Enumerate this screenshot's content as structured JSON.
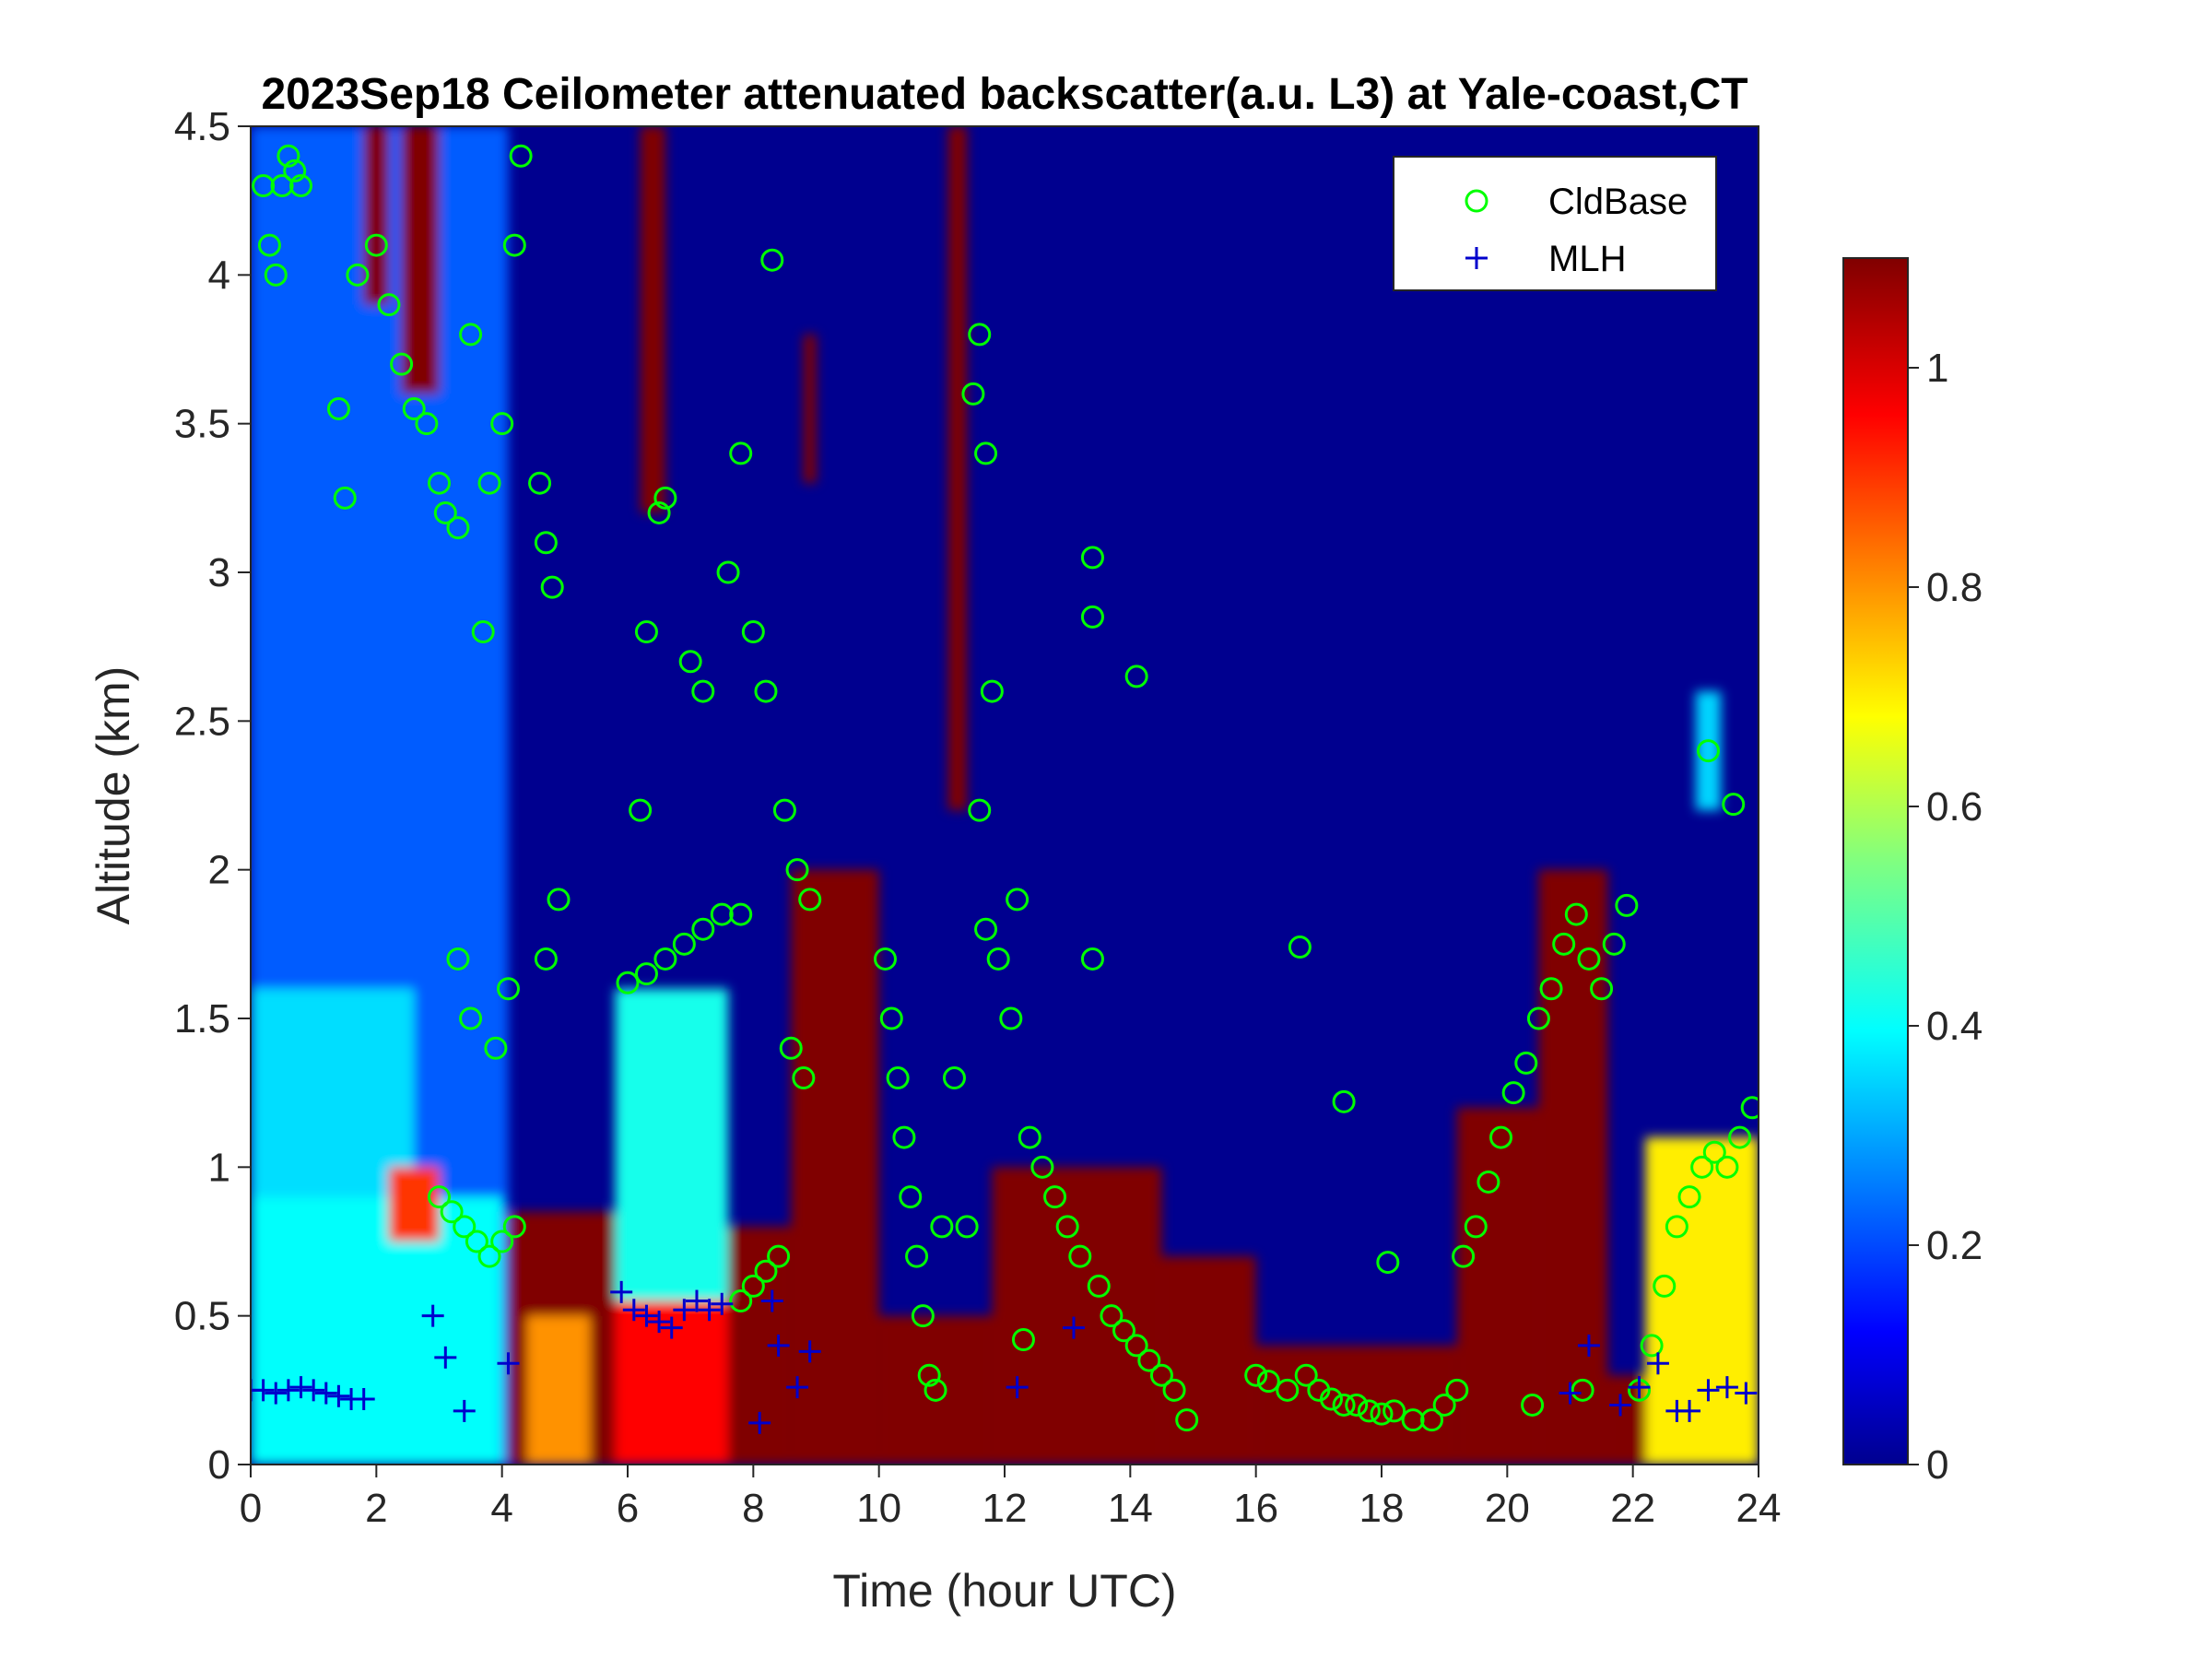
{
  "chart_data": {
    "type": "heatmap",
    "title": "2023Sep18 Ceilometer attenuated backscatter(a.u. L3) at Yale-coast,CT",
    "xlabel": "Time (hour UTC)",
    "ylabel": "Altitude (km)",
    "xlim": [
      0,
      24
    ],
    "ylim": [
      0,
      4.5
    ],
    "x_ticks": [
      "0",
      "2",
      "4",
      "6",
      "8",
      "10",
      "12",
      "14",
      "16",
      "18",
      "20",
      "22",
      "24"
    ],
    "y_ticks": [
      "0",
      "0.5",
      "1",
      "1.5",
      "2",
      "2.5",
      "3",
      "3.5",
      "4",
      "4.5"
    ],
    "colorbar": {
      "colormap": "jet",
      "range": [
        0,
        1.1
      ],
      "ticks": [
        "0",
        "0.2",
        "0.4",
        "0.6",
        "0.8",
        "1"
      ]
    },
    "legend": {
      "placement": "top-right",
      "entries": [
        {
          "name": "CldBase",
          "marker": "circle",
          "color": "#00ff00"
        },
        {
          "name": "MLH",
          "marker": "plus",
          "color": "#0000cc"
        }
      ]
    },
    "field_regions": [
      {
        "t0": 0,
        "t1": 4.1,
        "z0": 0,
        "z1": 4.5,
        "value": 0.22
      },
      {
        "t0": 0,
        "t1": 2.6,
        "z0": 0,
        "z1": 1.6,
        "value": 0.36
      },
      {
        "t0": 0,
        "t1": 4.0,
        "z0": 0,
        "z1": 0.9,
        "value": 0.4
      },
      {
        "t0": 2.2,
        "t1": 3.0,
        "z0": 0.75,
        "z1": 1.0,
        "value": 0.9
      },
      {
        "t0": 4.1,
        "t1": 5.8,
        "z0": 0,
        "z1": 0.85,
        "value": 1.1
      },
      {
        "t0": 4.4,
        "t1": 5.4,
        "z0": 0,
        "z1": 0.5,
        "value": 0.8
      },
      {
        "t0": 5.8,
        "t1": 7.6,
        "z0": 0.55,
        "z1": 1.6,
        "value": 0.42
      },
      {
        "t0": 5.8,
        "t1": 7.6,
        "z0": 0,
        "z1": 0.55,
        "value": 0.95
      },
      {
        "t0": 7.6,
        "t1": 8.6,
        "z0": 0,
        "z1": 0.8,
        "value": 1.1
      },
      {
        "t0": 8.6,
        "t1": 10.0,
        "z0": 0,
        "z1": 2.0,
        "value": 1.1
      },
      {
        "t0": 10.0,
        "t1": 11.8,
        "z0": 0,
        "z1": 0.5,
        "value": 1.1
      },
      {
        "t0": 11.8,
        "t1": 14.5,
        "z0": 0,
        "z1": 1.0,
        "value": 1.1
      },
      {
        "t0": 14.5,
        "t1": 16.0,
        "z0": 0,
        "z1": 0.7,
        "value": 1.1
      },
      {
        "t0": 16.0,
        "t1": 19.2,
        "z0": 0,
        "z1": 0.4,
        "value": 1.1
      },
      {
        "t0": 19.2,
        "t1": 20.5,
        "z0": 0,
        "z1": 1.2,
        "value": 1.1
      },
      {
        "t0": 20.5,
        "t1": 21.6,
        "z0": 0,
        "z1": 2.0,
        "value": 1.1
      },
      {
        "t0": 21.6,
        "t1": 22.2,
        "z0": 0,
        "z1": 0.3,
        "value": 1.1
      },
      {
        "t0": 22.2,
        "t1": 24.0,
        "z0": 0,
        "z1": 1.1,
        "value": 0.7
      },
      {
        "t0": 6.2,
        "t1": 6.6,
        "z0": 3.2,
        "z1": 4.5,
        "value": 1.1
      },
      {
        "t0": 8.8,
        "t1": 9.0,
        "z0": 3.3,
        "z1": 3.8,
        "value": 1.1
      },
      {
        "t0": 11.1,
        "t1": 11.4,
        "z0": 2.2,
        "z1": 4.5,
        "value": 1.1
      },
      {
        "t0": 2.4,
        "t1": 3.0,
        "z0": 3.6,
        "z1": 4.5,
        "value": 1.1
      },
      {
        "t0": 1.8,
        "t1": 2.2,
        "z0": 3.9,
        "z1": 4.5,
        "value": 1.1
      },
      {
        "t0": 23.0,
        "t1": 23.4,
        "z0": 2.2,
        "z1": 2.6,
        "value": 0.35
      }
    ],
    "cloud_base_km": [
      [
        0.2,
        4.3
      ],
      [
        0.3,
        4.1
      ],
      [
        0.4,
        4.0
      ],
      [
        0.5,
        4.3
      ],
      [
        0.6,
        4.4
      ],
      [
        0.7,
        4.35
      ],
      [
        0.8,
        4.3
      ],
      [
        1.4,
        3.55
      ],
      [
        1.5,
        3.25
      ],
      [
        1.7,
        4.0
      ],
      [
        2.0,
        4.1
      ],
      [
        2.2,
        3.9
      ],
      [
        2.4,
        3.7
      ],
      [
        2.6,
        3.55
      ],
      [
        2.8,
        3.5
      ],
      [
        3.0,
        3.3
      ],
      [
        3.1,
        3.2
      ],
      [
        3.3,
        3.15
      ],
      [
        3.5,
        3.8
      ],
      [
        3.7,
        2.8
      ],
      [
        3.8,
        3.3
      ],
      [
        4.0,
        3.5
      ],
      [
        4.2,
        4.1
      ],
      [
        4.3,
        4.4
      ],
      [
        4.6,
        3.3
      ],
      [
        4.7,
        3.1
      ],
      [
        4.8,
        2.95
      ],
      [
        3.0,
        0.9
      ],
      [
        3.2,
        0.85
      ],
      [
        3.4,
        0.8
      ],
      [
        3.6,
        0.75
      ],
      [
        3.8,
        0.7
      ],
      [
        4.0,
        0.75
      ],
      [
        4.2,
        0.8
      ],
      [
        3.3,
        1.7
      ],
      [
        3.5,
        1.5
      ],
      [
        3.9,
        1.4
      ],
      [
        4.1,
        1.6
      ],
      [
        4.7,
        1.7
      ],
      [
        4.9,
        1.9
      ],
      [
        6.0,
        1.62
      ],
      [
        6.3,
        1.65
      ],
      [
        6.6,
        1.7
      ],
      [
        6.9,
        1.75
      ],
      [
        7.2,
        1.8
      ],
      [
        7.5,
        1.85
      ],
      [
        7.8,
        1.85
      ],
      [
        6.5,
        3.2
      ],
      [
        6.6,
        3.25
      ],
      [
        6.3,
        2.8
      ],
      [
        6.2,
        2.2
      ],
      [
        7.0,
        2.7
      ],
      [
        7.2,
        2.6
      ],
      [
        7.6,
        3.0
      ],
      [
        7.8,
        3.4
      ],
      [
        8.0,
        2.8
      ],
      [
        8.2,
        2.6
      ],
      [
        8.5,
        2.2
      ],
      [
        8.7,
        2.0
      ],
      [
        8.9,
        1.9
      ],
      [
        8.3,
        4.05
      ],
      [
        7.8,
        0.55
      ],
      [
        8.0,
        0.6
      ],
      [
        8.2,
        0.65
      ],
      [
        8.4,
        0.7
      ],
      [
        8.6,
        1.4
      ],
      [
        8.8,
        1.3
      ],
      [
        10.1,
        1.7
      ],
      [
        10.2,
        1.5
      ],
      [
        10.3,
        1.3
      ],
      [
        10.4,
        1.1
      ],
      [
        10.5,
        0.9
      ],
      [
        10.6,
        0.7
      ],
      [
        10.7,
        0.5
      ],
      [
        10.8,
        0.3
      ],
      [
        10.9,
        0.25
      ],
      [
        11.0,
        0.8
      ],
      [
        11.2,
        1.3
      ],
      [
        11.4,
        0.8
      ],
      [
        11.5,
        3.6
      ],
      [
        11.6,
        3.8
      ],
      [
        11.7,
        3.4
      ],
      [
        11.8,
        2.6
      ],
      [
        11.6,
        2.2
      ],
      [
        11.7,
        1.8
      ],
      [
        11.9,
        1.7
      ],
      [
        12.1,
        1.5
      ],
      [
        12.2,
        1.9
      ],
      [
        12.4,
        1.1
      ],
      [
        12.6,
        1.0
      ],
      [
        12.8,
        0.9
      ],
      [
        13.0,
        0.8
      ],
      [
        13.2,
        0.7
      ],
      [
        13.4,
        1.7
      ],
      [
        13.5,
        0.6
      ],
      [
        13.7,
        0.5
      ],
      [
        13.9,
        0.45
      ],
      [
        14.1,
        0.4
      ],
      [
        14.3,
        0.35
      ],
      [
        14.5,
        0.3
      ],
      [
        14.7,
        0.25
      ],
      [
        14.9,
        0.15
      ],
      [
        13.4,
        3.05
      ],
      [
        13.4,
        2.85
      ],
      [
        14.1,
        2.65
      ],
      [
        12.3,
        0.42
      ],
      [
        16.0,
        0.3
      ],
      [
        16.2,
        0.28
      ],
      [
        16.5,
        0.25
      ],
      [
        16.8,
        0.3
      ],
      [
        17.0,
        0.25
      ],
      [
        17.2,
        0.22
      ],
      [
        17.4,
        0.2
      ],
      [
        17.6,
        0.2
      ],
      [
        17.8,
        0.18
      ],
      [
        18.0,
        0.17
      ],
      [
        18.2,
        0.18
      ],
      [
        18.5,
        0.15
      ],
      [
        18.8,
        0.15
      ],
      [
        19.0,
        0.2
      ],
      [
        19.2,
        0.25
      ],
      [
        17.4,
        1.22
      ],
      [
        16.7,
        1.74
      ],
      [
        18.1,
        0.68
      ],
      [
        19.3,
        0.7
      ],
      [
        19.5,
        0.8
      ],
      [
        19.7,
        0.95
      ],
      [
        19.9,
        1.1
      ],
      [
        20.1,
        1.25
      ],
      [
        20.3,
        1.35
      ],
      [
        20.5,
        1.5
      ],
      [
        20.7,
        1.6
      ],
      [
        20.9,
        1.75
      ],
      [
        21.1,
        1.85
      ],
      [
        21.3,
        1.7
      ],
      [
        21.5,
        1.6
      ],
      [
        21.7,
        1.75
      ],
      [
        21.9,
        1.88
      ],
      [
        20.4,
        0.2
      ],
      [
        21.2,
        0.25
      ],
      [
        22.1,
        0.25
      ],
      [
        22.3,
        0.4
      ],
      [
        22.5,
        0.6
      ],
      [
        22.7,
        0.8
      ],
      [
        22.9,
        0.9
      ],
      [
        23.1,
        1.0
      ],
      [
        23.3,
        1.05
      ],
      [
        23.5,
        1.0
      ],
      [
        23.7,
        1.1
      ],
      [
        23.9,
        1.2
      ],
      [
        23.2,
        2.4
      ],
      [
        23.6,
        2.22
      ]
    ],
    "mlh_km": [
      [
        0.0,
        0.25
      ],
      [
        0.2,
        0.25
      ],
      [
        0.4,
        0.24
      ],
      [
        0.6,
        0.25
      ],
      [
        0.8,
        0.26
      ],
      [
        1.0,
        0.25
      ],
      [
        1.2,
        0.24
      ],
      [
        1.4,
        0.23
      ],
      [
        1.6,
        0.22
      ],
      [
        1.8,
        0.22
      ],
      [
        2.9,
        0.5
      ],
      [
        3.1,
        0.36
      ],
      [
        3.4,
        0.18
      ],
      [
        4.1,
        0.34
      ],
      [
        5.9,
        0.58
      ],
      [
        6.1,
        0.52
      ],
      [
        6.3,
        0.5
      ],
      [
        6.5,
        0.48
      ],
      [
        6.7,
        0.46
      ],
      [
        6.9,
        0.52
      ],
      [
        7.1,
        0.55
      ],
      [
        7.3,
        0.52
      ],
      [
        7.5,
        0.54
      ],
      [
        8.1,
        0.14
      ],
      [
        8.3,
        0.55
      ],
      [
        8.4,
        0.4
      ],
      [
        8.7,
        0.26
      ],
      [
        8.9,
        0.38
      ],
      [
        12.2,
        0.26
      ],
      [
        13.1,
        0.46
      ],
      [
        21.0,
        0.24
      ],
      [
        21.3,
        0.4
      ],
      [
        21.8,
        0.2
      ],
      [
        22.1,
        0.26
      ],
      [
        22.4,
        0.34
      ],
      [
        22.7,
        0.18
      ],
      [
        22.9,
        0.18
      ],
      [
        23.2,
        0.25
      ],
      [
        23.5,
        0.26
      ],
      [
        23.8,
        0.24
      ]
    ]
  }
}
